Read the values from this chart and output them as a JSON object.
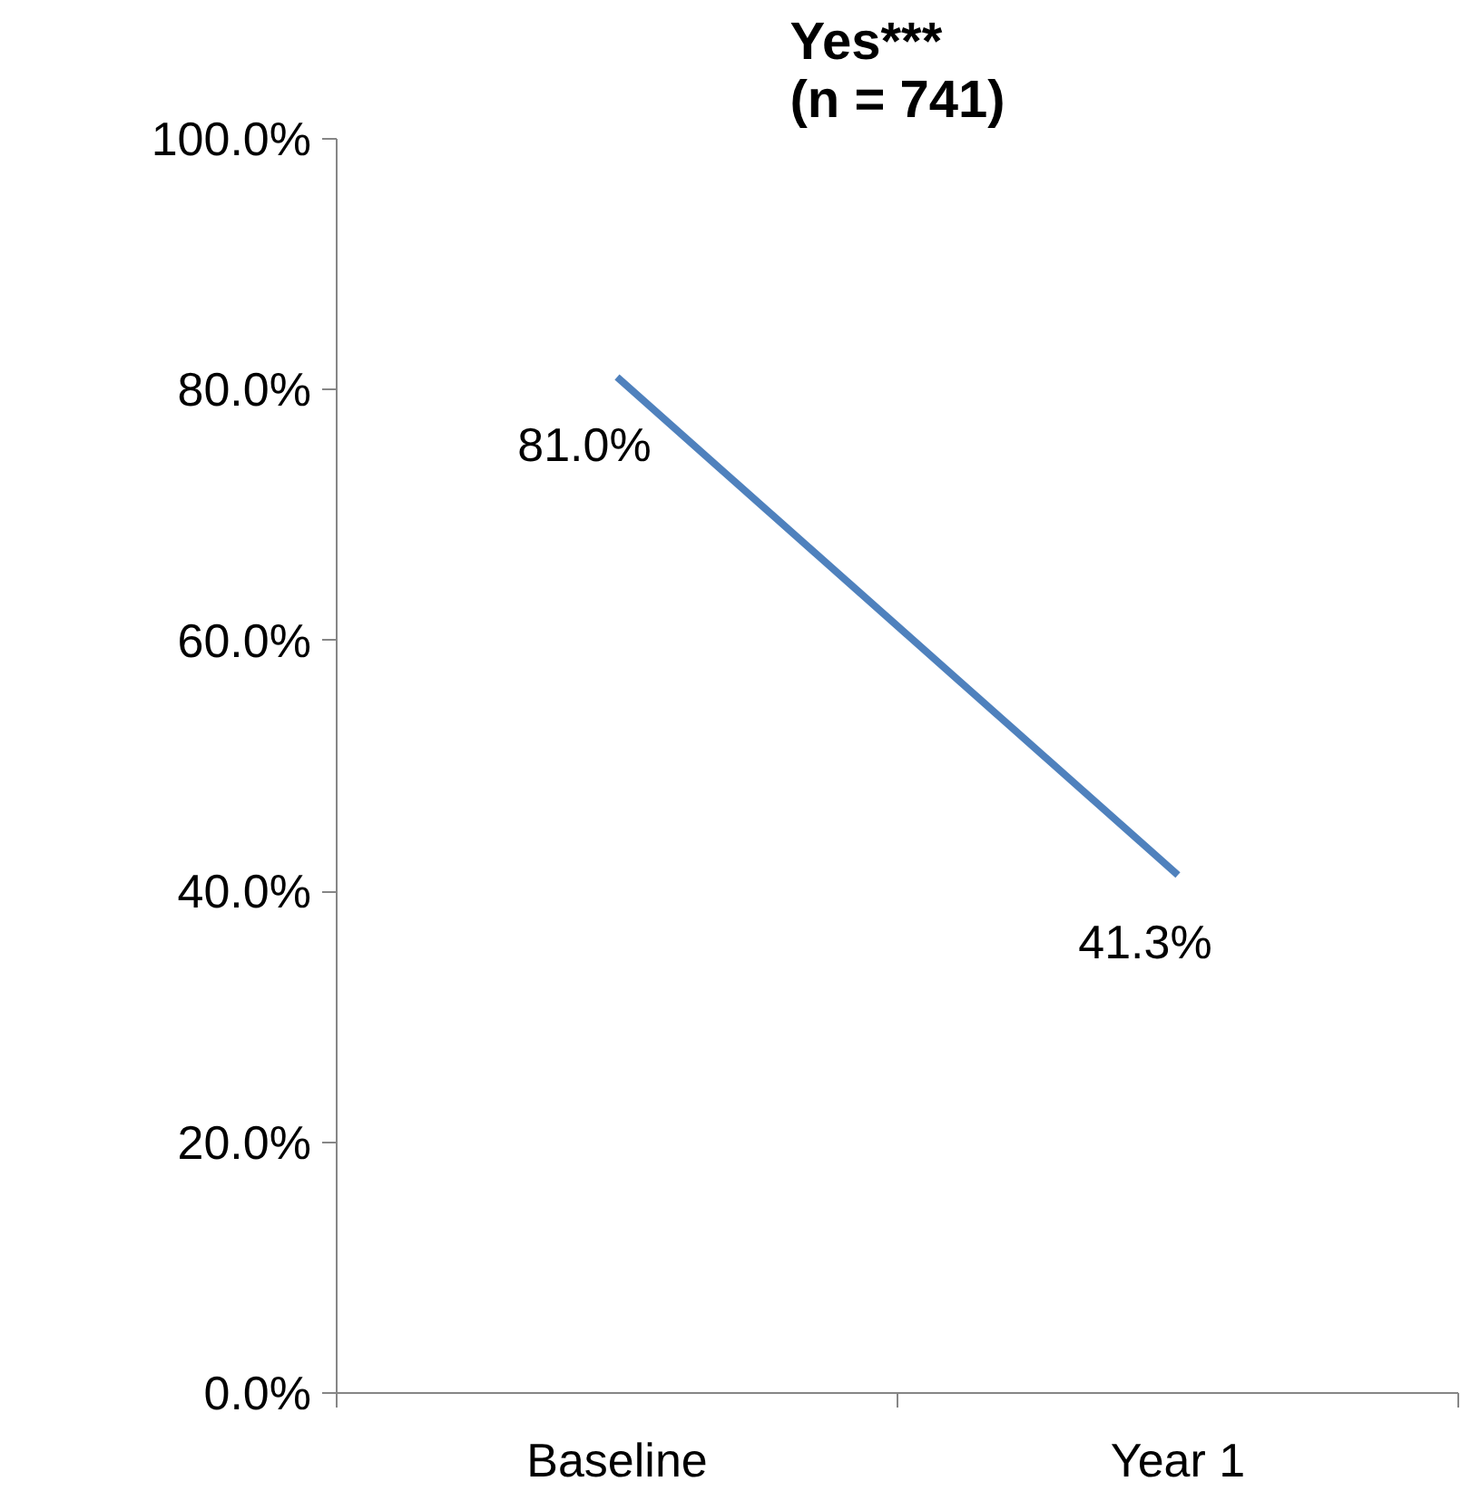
{
  "chart_data": {
    "type": "line",
    "title": "Yes***\n(n = 741)",
    "categories": [
      "Baseline",
      "Year 1"
    ],
    "series": [
      {
        "color": "#4f81bd",
        "values": [
          81.0,
          41.3
        ],
        "value_labels": [
          "81.0%",
          "41.3%"
        ]
      }
    ],
    "ylim": [
      0,
      100
    ],
    "yticks": [
      {
        "value": 0,
        "label": "0.0%"
      },
      {
        "value": 20,
        "label": "20.0%"
      },
      {
        "value": 40,
        "label": "40.0%"
      },
      {
        "value": 60,
        "label": "60.0%"
      },
      {
        "value": 80,
        "label": "80.0%"
      },
      {
        "value": 100,
        "label": "100.0%"
      }
    ],
    "grid": false,
    "marker": "none",
    "line_style": "solid"
  }
}
